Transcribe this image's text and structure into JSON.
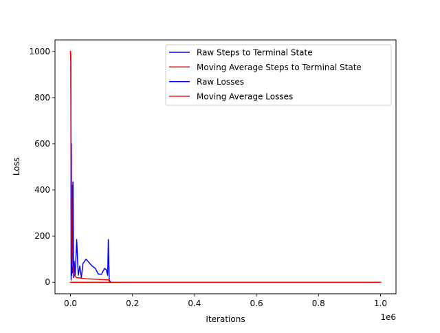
{
  "chart_data": {
    "type": "line",
    "title": "",
    "xlabel": "Iterations",
    "ylabel": "Loss",
    "x_offset_label": "1e6",
    "xlim": [
      -0.05,
      1.05
    ],
    "ylim": [
      -50,
      1050
    ],
    "x_ticks": [
      0.0,
      0.2,
      0.4,
      0.6,
      0.8,
      1.0
    ],
    "x_tick_labels": [
      "0.0",
      "0.2",
      "0.4",
      "0.6",
      "0.8",
      "1.0"
    ],
    "y_ticks": [
      0,
      200,
      400,
      600,
      800,
      1000
    ],
    "y_tick_labels": [
      "0",
      "200",
      "400",
      "600",
      "800",
      "1000"
    ],
    "grid": false,
    "legend_position": "top-right",
    "series": [
      {
        "name": "Raw Steps to Terminal State",
        "color": "#0000ff",
        "x": [
          0,
          0.001,
          0.002,
          0.003,
          0.004,
          0.005,
          0.006,
          0.008,
          0.01,
          0.012,
          0.015,
          0.02,
          0.025,
          0.03,
          0.035,
          0.04,
          0.05,
          0.06,
          0.07,
          0.08,
          0.09,
          0.1,
          0.11,
          0.115,
          0.12,
          0.122,
          0.125,
          0.13,
          1.0
        ],
        "y": [
          1000,
          990,
          10,
          600,
          30,
          420,
          40,
          435,
          20,
          90,
          30,
          185,
          30,
          70,
          20,
          80,
          100,
          85,
          70,
          60,
          35,
          35,
          60,
          55,
          30,
          185,
          10,
          0,
          0
        ]
      },
      {
        "name": "Moving Average Steps to Terminal State",
        "color": "#ff0000",
        "x": [
          0,
          0.001,
          0.002,
          0.004,
          0.006,
          0.01,
          0.015,
          0.02,
          0.05,
          0.1,
          0.124,
          0.126,
          1.0
        ],
        "y": [
          1000,
          950,
          500,
          200,
          80,
          40,
          25,
          20,
          15,
          12,
          10,
          0,
          0
        ]
      },
      {
        "name": "Raw Losses",
        "color": "#0000ff",
        "x": [
          0,
          0.05,
          0.1,
          0.125,
          0.13,
          1.0
        ],
        "y": [
          0,
          0,
          0,
          0,
          0,
          0
        ]
      },
      {
        "name": "Moving Average Losses",
        "color": "#ff0000",
        "x": [
          0,
          0.25,
          0.5,
          0.75,
          1.0
        ],
        "y": [
          0,
          0,
          0,
          0,
          0
        ]
      }
    ]
  }
}
